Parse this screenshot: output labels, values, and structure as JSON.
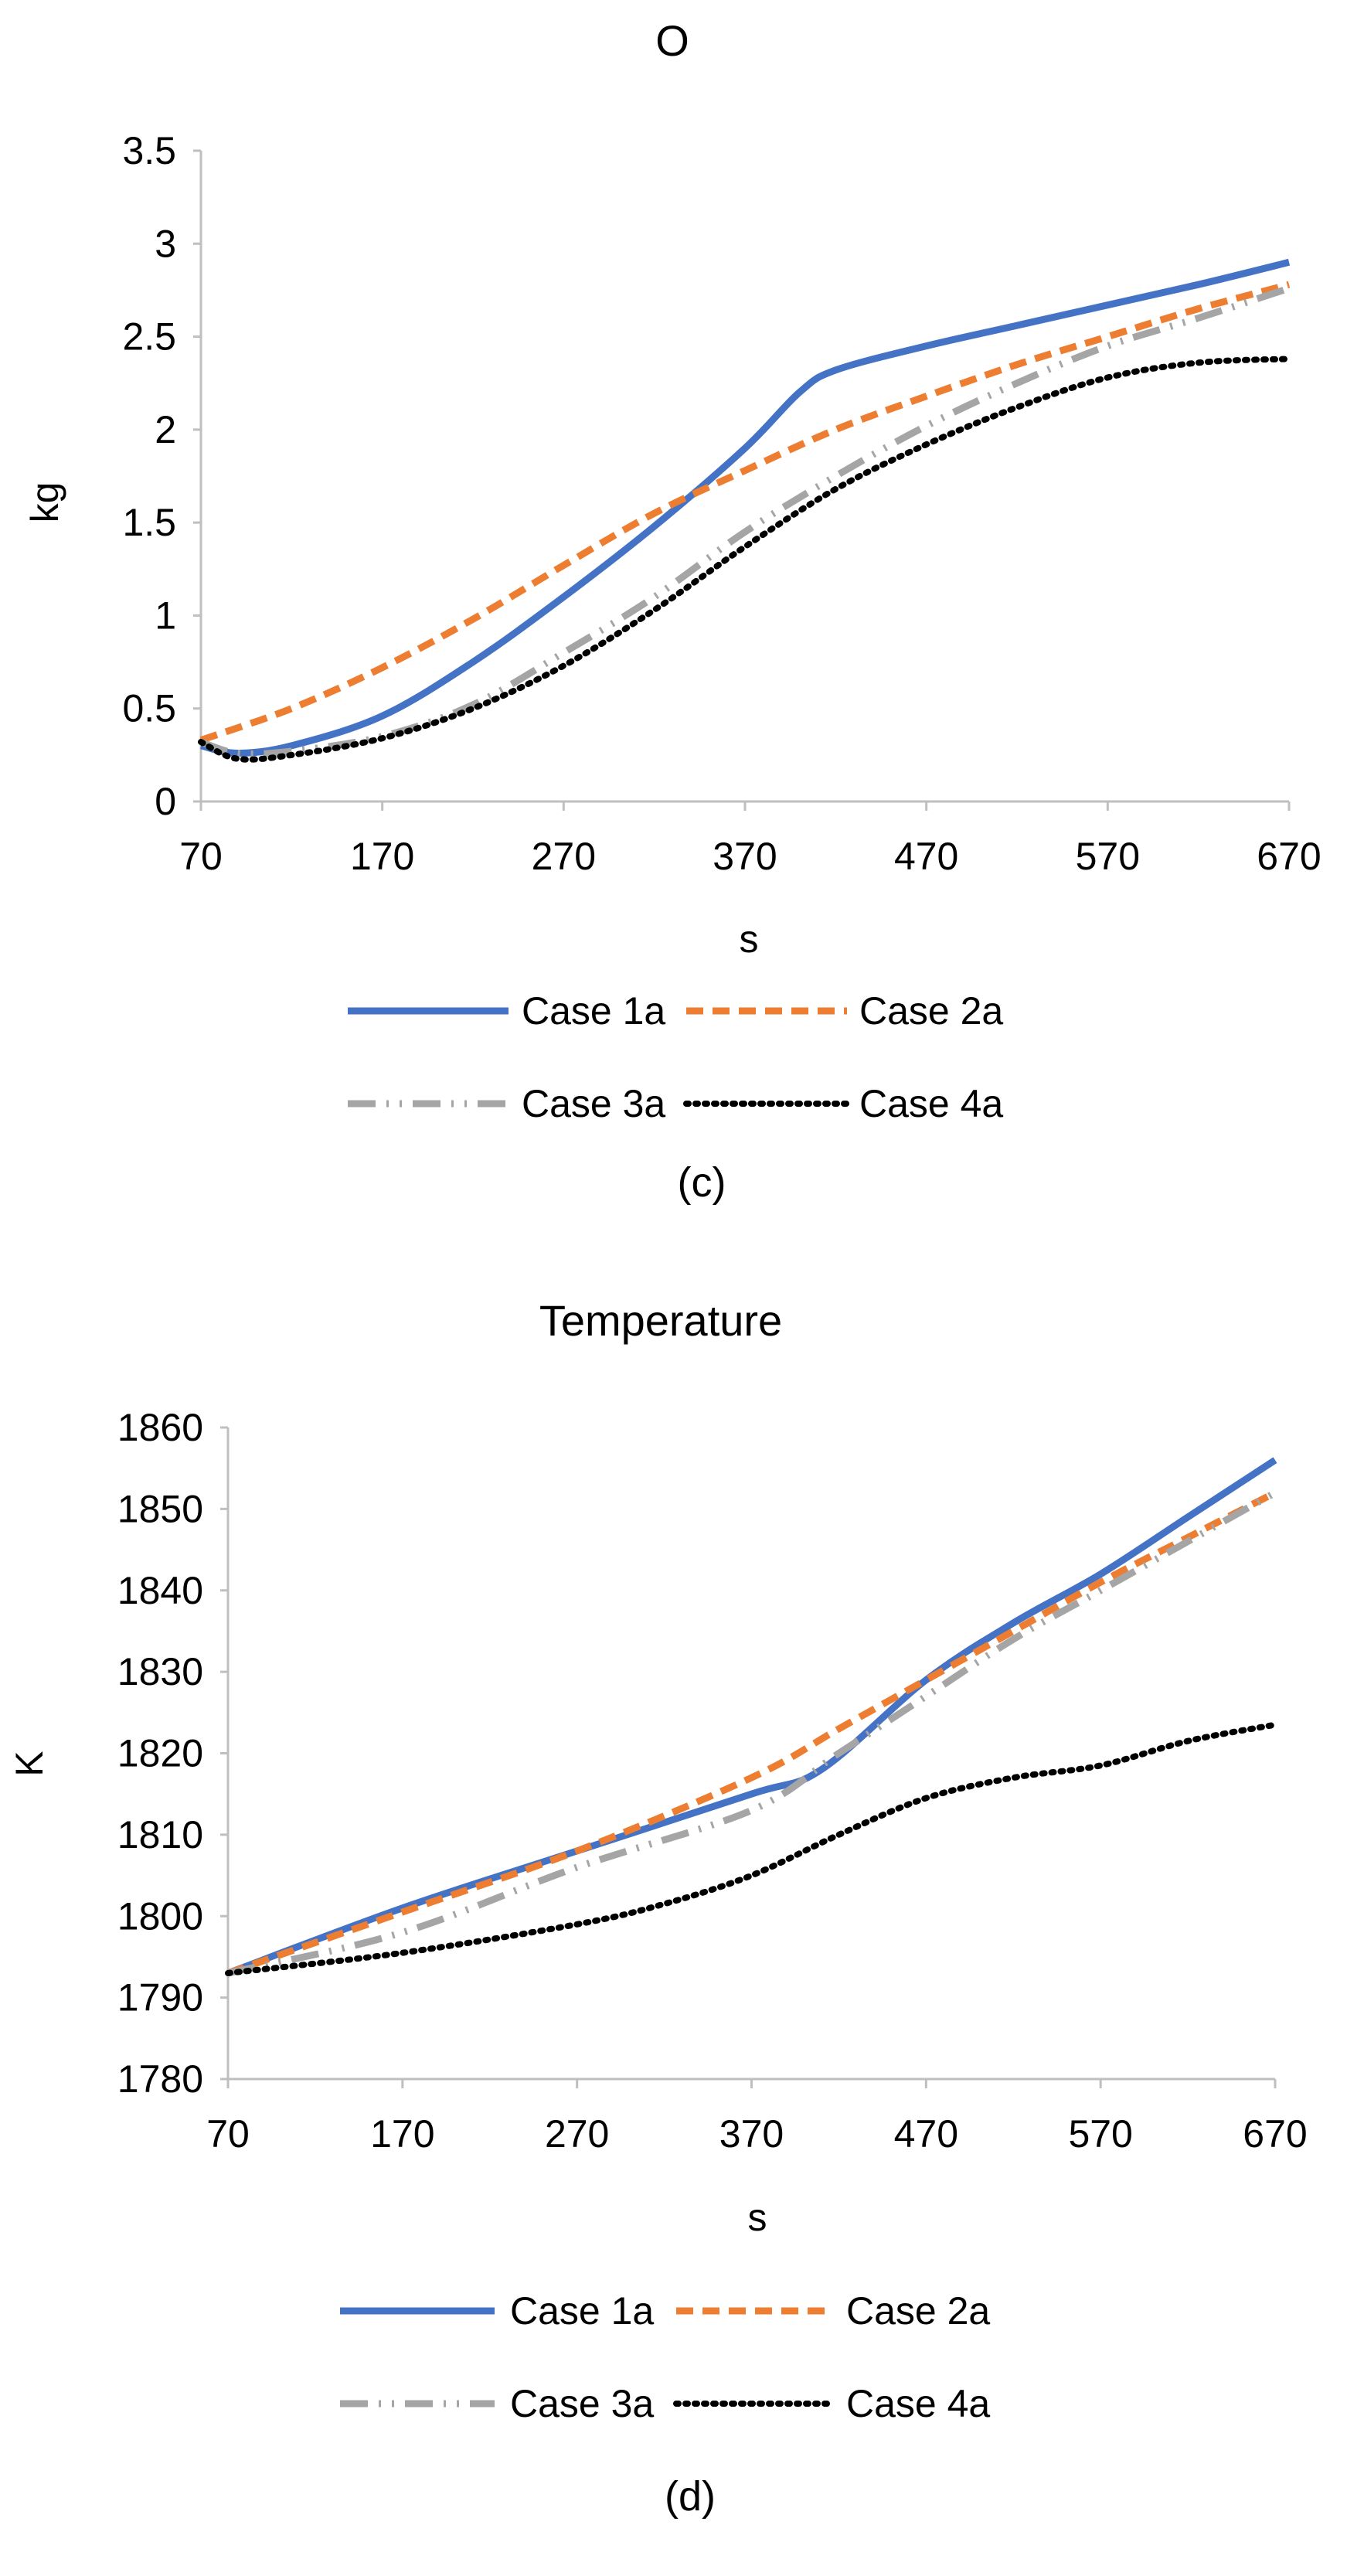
{
  "chart_data": [
    {
      "type": "line",
      "title": "O",
      "xlabel": "s",
      "ylabel": "kg",
      "caption": "(c)",
      "xlim": [
        70,
        670
      ],
      "ylim": [
        0,
        3.5
      ],
      "x_ticks": [
        "70",
        "170",
        "270",
        "370",
        "470",
        "570",
        "670"
      ],
      "y_ticks": [
        "0",
        "0.5",
        "1",
        "1.5",
        "2",
        "2.5",
        "3",
        "3.5"
      ],
      "series": [
        {
          "name": "Case 1a",
          "color": "#4472c4",
          "style": "solid",
          "x": [
            70,
            90,
            120,
            170,
            220,
            270,
            320,
            370,
            400,
            420,
            470,
            520,
            570,
            620,
            670
          ],
          "y": [
            0.3,
            0.26,
            0.3,
            0.46,
            0.75,
            1.1,
            1.48,
            1.9,
            2.2,
            2.32,
            2.45,
            2.56,
            2.67,
            2.78,
            2.9
          ]
        },
        {
          "name": "Case 2a",
          "color": "#ed7d31",
          "style": "dashed",
          "x": [
            70,
            120,
            170,
            220,
            270,
            320,
            370,
            420,
            470,
            520,
            570,
            620,
            670
          ],
          "y": [
            0.33,
            0.5,
            0.72,
            0.98,
            1.27,
            1.55,
            1.78,
            2.0,
            2.18,
            2.35,
            2.5,
            2.65,
            2.78
          ]
        },
        {
          "name": "Case 3a",
          "color": "#a5a5a5",
          "style": "dash-dot-dot",
          "x": [
            70,
            90,
            120,
            170,
            220,
            270,
            320,
            370,
            420,
            470,
            520,
            570,
            620,
            670
          ],
          "y": [
            0.32,
            0.26,
            0.27,
            0.35,
            0.52,
            0.8,
            1.1,
            1.45,
            1.75,
            2.02,
            2.25,
            2.45,
            2.6,
            2.76
          ]
        },
        {
          "name": "Case 4a",
          "color": "#000000",
          "style": "dotted",
          "x": [
            70,
            90,
            120,
            170,
            220,
            270,
            320,
            370,
            420,
            470,
            520,
            570,
            620,
            670
          ],
          "y": [
            0.32,
            0.23,
            0.25,
            0.34,
            0.5,
            0.73,
            1.03,
            1.37,
            1.68,
            1.92,
            2.12,
            2.28,
            2.36,
            2.38
          ]
        }
      ],
      "legend": [
        "Case 1a",
        "Case 2a",
        "Case 3a",
        "Case 4a"
      ]
    },
    {
      "type": "line",
      "title": "Temperature",
      "xlabel": "s",
      "ylabel": "K",
      "caption": "(d)",
      "xlim": [
        70,
        670
      ],
      "ylim": [
        1780,
        1860
      ],
      "x_ticks": [
        "70",
        "170",
        "270",
        "370",
        "470",
        "570",
        "670"
      ],
      "y_ticks": [
        "1780",
        "1790",
        "1800",
        "1810",
        "1820",
        "1830",
        "1840",
        "1850",
        "1860"
      ],
      "series": [
        {
          "name": "Case 1a",
          "color": "#4472c4",
          "style": "solid",
          "x": [
            70,
            170,
            270,
            370,
            410,
            470,
            520,
            570,
            620,
            670
          ],
          "y": [
            1793,
            1801,
            1808,
            1815,
            1818,
            1829,
            1836,
            1842,
            1849,
            1856
          ]
        },
        {
          "name": "Case 2a",
          "color": "#ed7d31",
          "style": "dashed",
          "x": [
            70,
            170,
            270,
            370,
            420,
            470,
            520,
            570,
            620,
            670
          ],
          "y": [
            1793,
            1800.5,
            1808,
            1817,
            1823,
            1829,
            1835,
            1841,
            1846.5,
            1852
          ]
        },
        {
          "name": "Case 3a",
          "color": "#a5a5a5",
          "style": "dash-dot-dot",
          "x": [
            70,
            170,
            270,
            370,
            420,
            470,
            520,
            570,
            620,
            670
          ],
          "y": [
            1793,
            1798,
            1806,
            1813,
            1820,
            1827,
            1834,
            1840,
            1846,
            1852
          ]
        },
        {
          "name": "Case 4a",
          "color": "#000000",
          "style": "dotted",
          "x": [
            70,
            170,
            270,
            320,
            370,
            420,
            470,
            520,
            570,
            620,
            670
          ],
          "y": [
            1793,
            1795.5,
            1799,
            1801.5,
            1805,
            1810,
            1814.5,
            1817,
            1818.5,
            1821.5,
            1823.5
          ]
        }
      ],
      "legend": [
        "Case 1a",
        "Case 2a",
        "Case 3a",
        "Case 4a"
      ]
    }
  ]
}
